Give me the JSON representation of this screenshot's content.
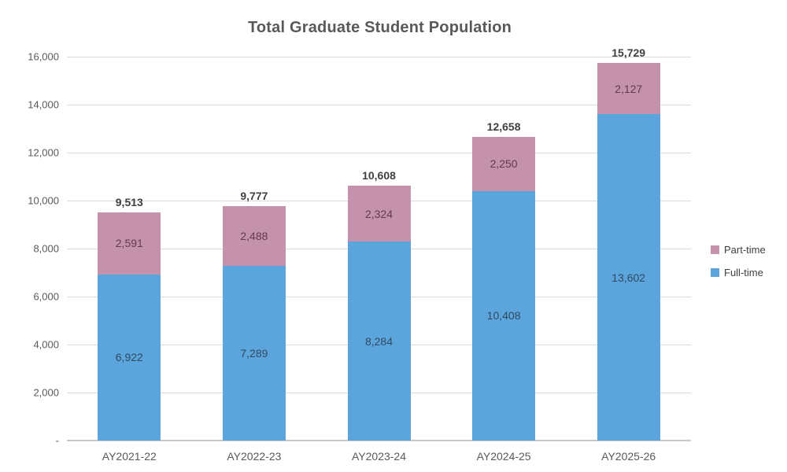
{
  "chart_data": {
    "type": "bar",
    "stacked": true,
    "title": "Total Graduate Student Population",
    "categories": [
      "AY2021-22",
      "AY2022-23",
      "AY2023-24",
      "AY2024-25",
      "AY2025-26"
    ],
    "series": [
      {
        "name": "Full-time",
        "values": [
          6922,
          7289,
          8284,
          10408,
          13602
        ],
        "color": "#5BA5DC",
        "label_color": "#2F4A61"
      },
      {
        "name": "Part-time",
        "values": [
          2591,
          2488,
          2324,
          2250,
          2127
        ],
        "color": "#C492AB",
        "label_color": "#63394F"
      }
    ],
    "totals": [
      9513,
      9777,
      10608,
      12658,
      15729
    ],
    "xlabel": "",
    "ylabel": "",
    "ylim": [
      0,
      16000
    ],
    "grid": true,
    "legend_position": "right",
    "yticks": [
      {
        "label": "16,000",
        "value": 16000
      },
      {
        "label": "14,000",
        "value": 14000
      },
      {
        "label": "12,000",
        "value": 12000
      },
      {
        "label": "10,000",
        "value": 10000
      },
      {
        "label": "8,000",
        "value": 8000
      },
      {
        "label": "6,000",
        "value": 6000
      },
      {
        "label": "4,000",
        "value": 4000
      },
      {
        "label": "2,000",
        "value": 2000
      },
      {
        "label": "-",
        "value": 0
      }
    ],
    "legend": [
      {
        "label": "Part-time",
        "color": "#C492AB"
      },
      {
        "label": "Full-time",
        "color": "#5BA5DC"
      }
    ]
  },
  "colors": {
    "title_text": "#595959",
    "axis_text": "#595959",
    "total_text": "#3F3F3F",
    "gridline": "#DCDCDC",
    "axis_line": "#C8C8C8",
    "background": "#FFFFFF"
  }
}
